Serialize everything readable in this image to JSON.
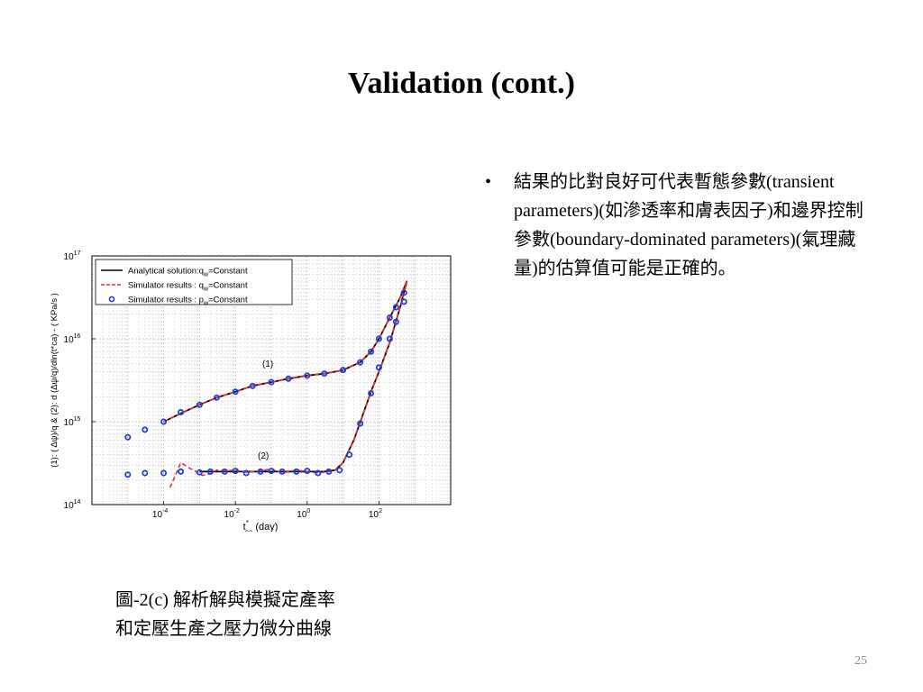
{
  "slide": {
    "title": "Validation (cont.)",
    "bullet_symbol": "•",
    "bullet_text": "結果的比對良好可代表暫態參數(transient parameters)(如滲透率和膚表因子)和邊界控制參數(boundary-dominated parameters)(氣理藏量)的估算值可能是正確的。",
    "caption_line1": "圖-2(c) 解析解與模擬定產率",
    "caption_line2": "和定壓生產之壓力微分曲線",
    "page_number": "25"
  },
  "chart_data": {
    "type": "line",
    "x_scale": "log",
    "y_scale": "log",
    "xlim": [
      1e-06,
      10000
    ],
    "ylim": [
      100000000000000.0,
      1e+17
    ],
    "x_ticks": [
      {
        "value": 0.0001,
        "base": "10",
        "exp": "-4"
      },
      {
        "value": 0.01,
        "base": "10",
        "exp": "-2"
      },
      {
        "value": 1,
        "base": "10",
        "exp": "0"
      },
      {
        "value": 100,
        "base": "10",
        "exp": "2"
      }
    ],
    "y_ticks": [
      {
        "value": 100000000000000.0,
        "base": "10",
        "exp": "14"
      },
      {
        "value": 1000000000000000.0,
        "base": "10",
        "exp": "15"
      },
      {
        "value": 1e+16,
        "base": "10",
        "exp": "16"
      },
      {
        "value": 1e+17,
        "base": "10",
        "exp": "17"
      }
    ],
    "xlabel": {
      "main": "t",
      "sup": "*",
      "sub": "ca",
      "rest": " (day)"
    },
    "ylabel": "(1): ( Δψ)/q  &  (2): d (Δψ/q)/dln(t*ca) - ( KPa/s )",
    "grid": true,
    "legend_position": "top-left",
    "annotations": [
      {
        "text": "(1)",
        "x": 0.08,
        "y": 4600000000000000.0
      },
      {
        "text": "(2)",
        "x": 0.06,
        "y": 360000000000000.0
      }
    ],
    "series": [
      {
        "name": "Analytical solution:q_w=Constant",
        "legend_text": "Analytical solution:q",
        "legend_sub": "w",
        "legend_rest": "=Constant",
        "style": "solid",
        "color": "#000000",
        "curves": [
          {
            "x": [
              0.0001,
              0.0003,
              0.001,
              0.003,
              0.01,
              0.03,
              0.1,
              0.3,
              1,
              3,
              10,
              30,
              60,
              100,
              200,
              400,
              600
            ],
            "y": [
              1000000000000000.0,
              1260000000000000.0,
              1600000000000000.0,
              1950000000000000.0,
              2300000000000000.0,
              2700000000000000.0,
              3000000000000000.0,
              3300000000000000.0,
              3600000000000000.0,
              3800000000000000.0,
              4200000000000000.0,
              5200000000000000.0,
              7000000000000000.0,
              1e+16,
              1.8e+16,
              3.2e+16,
              5e+16
            ]
          },
          {
            "x": [
              0.001,
              0.003,
              0.01,
              0.03,
              0.1,
              0.3,
              1,
              3,
              6,
              10,
              20,
              40,
              60,
              100,
              200,
              400,
              600
            ],
            "y": [
              250000000000000.0,
              250000000000000.0,
              250000000000000.0,
              250000000000000.0,
              250000000000000.0,
              250000000000000.0,
              250000000000000.0,
              250000000000000.0,
              260000000000000.0,
              320000000000000.0,
              600000000000000.0,
              1400000000000000.0,
              2300000000000000.0,
              4000000000000000.0,
              9000000000000000.0,
              2.5e+16,
              5e+16
            ]
          }
        ]
      },
      {
        "name": "Simulator results : q_w=Constant",
        "legend_text": "Simulator results : q",
        "legend_sub": "w",
        "legend_rest": "=Constant",
        "style": "dashed",
        "color": "#e8322b",
        "curves": [
          {
            "x": [
              0.0001,
              0.0003,
              0.001,
              0.003,
              0.01,
              0.03,
              0.1,
              0.3,
              1,
              3,
              10,
              30,
              60,
              100,
              200,
              400,
              600
            ],
            "y": [
              1000000000000000.0,
              1260000000000000.0,
              1600000000000000.0,
              1950000000000000.0,
              2300000000000000.0,
              2700000000000000.0,
              3000000000000000.0,
              3300000000000000.0,
              3600000000000000.0,
              3800000000000000.0,
              4200000000000000.0,
              5200000000000000.0,
              7000000000000000.0,
              1e+16,
              1.8e+16,
              3.2e+16,
              5e+16
            ]
          },
          {
            "x": [
              0.00015,
              0.0003,
              0.0005,
              0.0008,
              0.0012,
              0.002,
              0.003,
              0.005,
              0.01,
              0.02,
              0.05,
              0.1,
              0.2,
              0.5,
              1,
              2,
              4,
              6,
              10,
              20,
              40,
              60,
              100,
              200,
              400,
              600
            ],
            "y": [
              160000000000000.0,
              320000000000000.0,
              280000000000000.0,
              250000000000000.0,
              225000000000000.0,
              235000000000000.0,
              260000000000000.0,
              255000000000000.0,
              260000000000000.0,
              245000000000000.0,
              255000000000000.0,
              270000000000000.0,
              240000000000000.0,
              260000000000000.0,
              250000000000000.0,
              240000000000000.0,
              250000000000000.0,
              260000000000000.0,
              320000000000000.0,
              600000000000000.0,
              1400000000000000.0,
              2300000000000000.0,
              4000000000000000.0,
              9000000000000000.0,
              2.5e+16,
              5e+16
            ]
          }
        ]
      },
      {
        "name": "Simulator results : p_w=Constant",
        "legend_text": "Simulator results : p",
        "legend_sub": "w",
        "legend_rest": "=Constant",
        "style": "marker",
        "color": "#1f3fd6",
        "curves": [
          {
            "x": [
              1e-05,
              3e-05,
              0.0001,
              0.0003,
              0.001,
              0.003,
              0.01,
              0.03,
              0.1,
              0.3,
              1,
              3,
              10,
              30,
              60,
              100,
              200,
              300,
              500
            ],
            "y": [
              650000000000000.0,
              800000000000000.0,
              1000000000000000.0,
              1300000000000000.0,
              1600000000000000.0,
              1950000000000000.0,
              2300000000000000.0,
              2700000000000000.0,
              3000000000000000.0,
              3300000000000000.0,
              3600000000000000.0,
              3800000000000000.0,
              4200000000000000.0,
              5200000000000000.0,
              7000000000000000.0,
              1e+16,
              1.8e+16,
              2.4e+16,
              3.6e+16
            ]
          },
          {
            "x": [
              1e-05,
              3e-05,
              0.0001,
              0.0003,
              0.001,
              0.002,
              0.005,
              0.01,
              0.02,
              0.05,
              0.1,
              0.2,
              0.5,
              1,
              2,
              4,
              8,
              15,
              30,
              60,
              100,
              200,
              300,
              500
            ],
            "y": [
              230000000000000.0,
              240000000000000.0,
              240000000000000.0,
              250000000000000.0,
              245000000000000.0,
              250000000000000.0,
              250000000000000.0,
              255000000000000.0,
              240000000000000.0,
              250000000000000.0,
              255000000000000.0,
              250000000000000.0,
              250000000000000.0,
              255000000000000.0,
              240000000000000.0,
              250000000000000.0,
              260000000000000.0,
              400000000000000.0,
              950000000000000.0,
              2200000000000000.0,
              4500000000000000.0,
              1e+16,
              1.6e+16,
              2.8e+16
            ]
          }
        ]
      }
    ]
  }
}
